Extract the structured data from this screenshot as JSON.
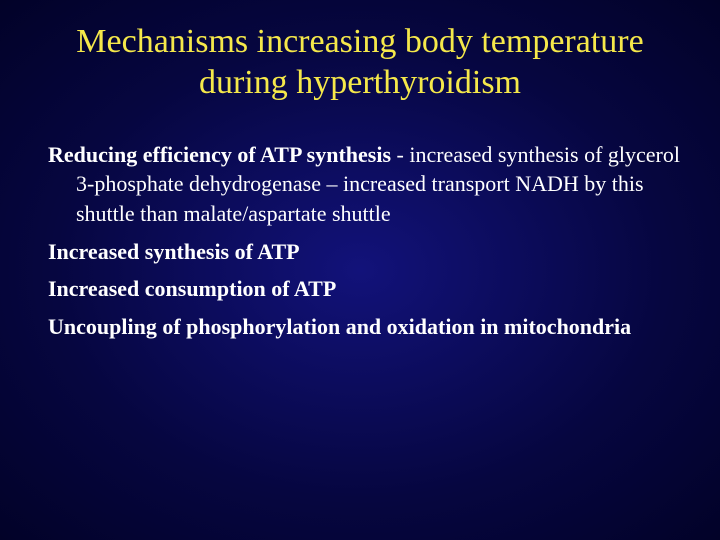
{
  "colors": {
    "title_color": "#f5e84a",
    "body_color": "#ffffff"
  },
  "typography": {
    "title_fontsize": 34,
    "body_fontsize": 22,
    "font_family": "Times New Roman"
  },
  "title": "Mechanisms increasing body temperature during hyperthyroidism",
  "bullets": [
    {
      "bold": "Reducing efficiency of ATP synthesis",
      "rest": " - increased synthesis of glycerol 3-phosphate dehydrogenase – increased transport NADH by this shuttle than malate/aspartate shuttle"
    },
    {
      "bold": "Increased synthesis of ATP",
      "rest": ""
    },
    {
      "bold": "Increased consumption of ATP",
      "rest": ""
    },
    {
      "bold": "Uncoupling of phosphorylation and oxidation in mitochondria",
      "rest": ""
    }
  ]
}
